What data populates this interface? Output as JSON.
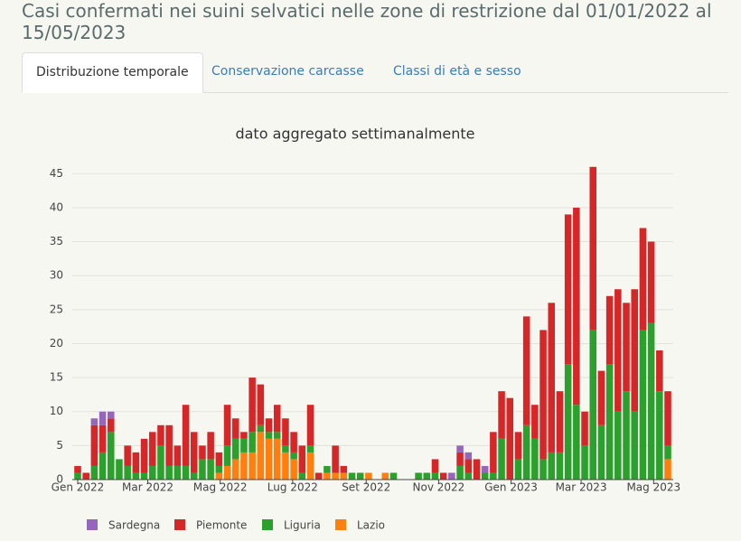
{
  "header": {
    "title": "Casi confermati nei suini selvatici nelle zone di restrizione dal 01/01/2022 al 15/05/2023"
  },
  "tabs": [
    "Distribuzione temporale",
    "Conservazione carcasse",
    "Classi di età e sesso"
  ],
  "chart_data": {
    "type": "stacked_bar",
    "title": "dato aggregato settimanalmente",
    "x": [
      0,
      1,
      2,
      3,
      4,
      5,
      6,
      7,
      8,
      9,
      10,
      11,
      12,
      13,
      14,
      15,
      16,
      17,
      18,
      19,
      20,
      21,
      22,
      23,
      24,
      25,
      26,
      27,
      28,
      29,
      30,
      31,
      32,
      33,
      34,
      35,
      36,
      37,
      38,
      39,
      40,
      41,
      42,
      43,
      44,
      45,
      46,
      47,
      48,
      49,
      50,
      51,
      52,
      53,
      54,
      55,
      56,
      57,
      58,
      59,
      60,
      61,
      62,
      63,
      64,
      65,
      66,
      67,
      68,
      69,
      70,
      71
    ],
    "xlim": [
      -0.65,
      71.65
    ],
    "xticks": [
      {
        "value": 0,
        "label": "Gen 2022"
      },
      {
        "value": 8.43,
        "label": "Mar 2022"
      },
      {
        "value": 17.14,
        "label": "Mag 2022"
      },
      {
        "value": 25.86,
        "label": "Lug 2022"
      },
      {
        "value": 34.71,
        "label": "Set 2022"
      },
      {
        "value": 43.43,
        "label": "Nov 2022"
      },
      {
        "value": 52.14,
        "label": "Gen 2023"
      },
      {
        "value": 60.57,
        "label": "Mar 2023"
      },
      {
        "value": 69.29,
        "label": "Mag 2023"
      }
    ],
    "ylim": [
      0,
      46.5
    ],
    "yticks": [
      0,
      5,
      10,
      15,
      20,
      25,
      30,
      35,
      40,
      45
    ],
    "grid": true,
    "series": [
      {
        "name": "Sardegna",
        "color": "#9467bd",
        "values": [
          0,
          0,
          1,
          2,
          1,
          0,
          0,
          0,
          0,
          0,
          0,
          0,
          0,
          0,
          0,
          0,
          0,
          0,
          0,
          0,
          0,
          0,
          0,
          0,
          0,
          0,
          0,
          0,
          0,
          0,
          0,
          0,
          0,
          0,
          0,
          0,
          0,
          0,
          0,
          0,
          0,
          0,
          0,
          0,
          0,
          1,
          1,
          1,
          0,
          1,
          0,
          0,
          0,
          0,
          0,
          0,
          0,
          0,
          0,
          0,
          0,
          0,
          0,
          0,
          0,
          0,
          0,
          0,
          0,
          0,
          0,
          0
        ]
      },
      {
        "name": "Piemonte",
        "color": "#d62728",
        "values": [
          1,
          1,
          6,
          4,
          2,
          0,
          3,
          3,
          5,
          5,
          3,
          6,
          3,
          9,
          6,
          2,
          4,
          2,
          6,
          3,
          1,
          8,
          6,
          2,
          4,
          4,
          3,
          4,
          6,
          1,
          0,
          4,
          1,
          0,
          0,
          0,
          0,
          0,
          0,
          0,
          0,
          0,
          0,
          2,
          1,
          0,
          2,
          2,
          3,
          0,
          6,
          7,
          12,
          4,
          16,
          5,
          19,
          22,
          9,
          22,
          29,
          5,
          24,
          8,
          10,
          18,
          13,
          18,
          15,
          12,
          6,
          8
        ]
      },
      {
        "name": "Liguria",
        "color": "#2ca02c",
        "values": [
          1,
          0,
          2,
          4,
          7,
          3,
          2,
          1,
          1,
          2,
          5,
          2,
          2,
          2,
          1,
          3,
          3,
          1,
          3,
          3,
          2,
          3,
          1,
          1,
          1,
          1,
          1,
          1,
          1,
          0,
          1,
          0,
          0,
          1,
          1,
          0,
          0,
          0,
          1,
          0,
          0,
          1,
          1,
          1,
          0,
          0,
          2,
          1,
          0,
          1,
          1,
          6,
          0,
          3,
          8,
          6,
          3,
          4,
          4,
          17,
          11,
          5,
          22,
          8,
          17,
          10,
          13,
          10,
          22,
          23,
          13,
          2
        ]
      },
      {
        "name": "Lazio",
        "color": "#ff7f0e",
        "values": [
          0,
          0,
          0,
          0,
          0,
          0,
          0,
          0,
          0,
          0,
          0,
          0,
          0,
          0,
          0,
          0,
          0,
          1,
          2,
          3,
          4,
          4,
          7,
          6,
          6,
          4,
          3,
          0,
          4,
          0,
          1,
          1,
          1,
          0,
          0,
          1,
          0,
          1,
          0,
          0,
          0,
          0,
          0,
          0,
          0,
          0,
          0,
          0,
          0,
          0,
          0,
          0,
          0,
          0,
          0,
          0,
          0,
          0,
          0,
          0,
          0,
          0,
          0,
          0,
          0,
          0,
          0,
          0,
          0,
          0,
          0,
          3
        ]
      }
    ],
    "legend": "bottom-left"
  }
}
